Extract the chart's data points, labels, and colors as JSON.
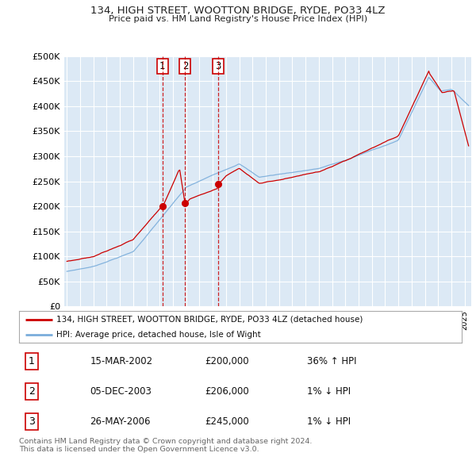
{
  "title1": "134, HIGH STREET, WOOTTON BRIDGE, RYDE, PO33 4LZ",
  "title2": "Price paid vs. HM Land Registry's House Price Index (HPI)",
  "ylabel_ticks": [
    "£0",
    "£50K",
    "£100K",
    "£150K",
    "£200K",
    "£250K",
    "£300K",
    "£350K",
    "£400K",
    "£450K",
    "£500K"
  ],
  "ytick_values": [
    0,
    50000,
    100000,
    150000,
    200000,
    250000,
    300000,
    350000,
    400000,
    450000,
    500000
  ],
  "xlim_start": 1994.8,
  "xlim_end": 2025.5,
  "ylim_min": 0,
  "ylim_max": 500000,
  "plot_bg_color": "#dce9f5",
  "grid_color": "#ffffff",
  "vline_color": "#cc0000",
  "sale_dates": [
    2002.21,
    2003.92,
    2006.4
  ],
  "sale_prices": [
    200000,
    206000,
    245000
  ],
  "sale_labels": [
    "1",
    "2",
    "3"
  ],
  "legend_red": "134, HIGH STREET, WOOTTON BRIDGE, RYDE, PO33 4LZ (detached house)",
  "legend_blue": "HPI: Average price, detached house, Isle of Wight",
  "table_data": [
    [
      "1",
      "15-MAR-2002",
      "£200,000",
      "36% ↑ HPI"
    ],
    [
      "2",
      "05-DEC-2003",
      "£206,000",
      "1% ↓ HPI"
    ],
    [
      "3",
      "26-MAY-2006",
      "£245,000",
      "1% ↓ HPI"
    ]
  ],
  "footer": "Contains HM Land Registry data © Crown copyright and database right 2024.\nThis data is licensed under the Open Government Licence v3.0.",
  "red_color": "#cc0000",
  "blue_color": "#7aaddb"
}
